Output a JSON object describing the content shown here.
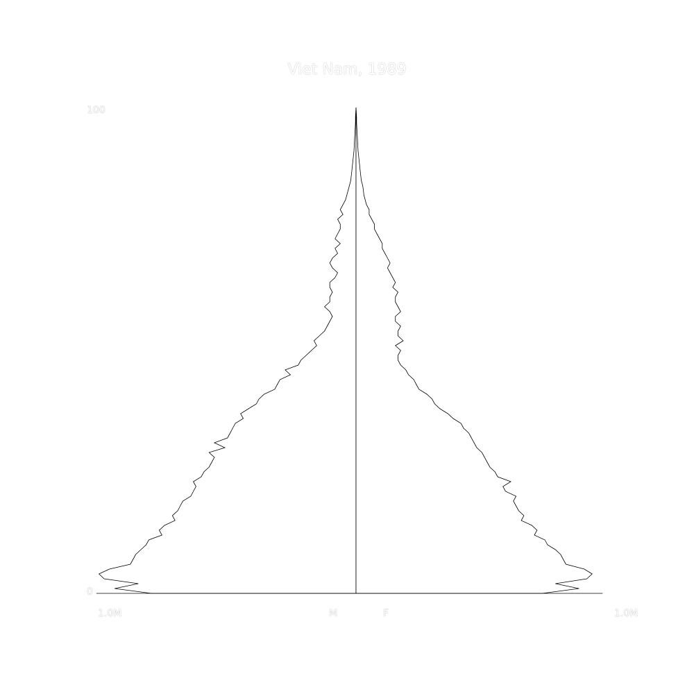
{
  "chart_data": {
    "type": "area",
    "title": "Viet Nam, 1989",
    "y_tick_labels": [
      "100",
      "0"
    ],
    "ylim": [
      0,
      100
    ],
    "x_tick_labels": {
      "left": "1.0M",
      "right": "1.0M"
    },
    "xlim_millions": 1.0,
    "side_labels": {
      "male": "M",
      "female": "F"
    },
    "line_color": "#000000",
    "fill_color": "#ffffff",
    "series": [
      {
        "name": "M",
        "ages": [
          0,
          1,
          2,
          3,
          4,
          5,
          6,
          7,
          8,
          9,
          10,
          11,
          12,
          13,
          14,
          15,
          16,
          17,
          18,
          19,
          20,
          21,
          22,
          23,
          24,
          25,
          26,
          27,
          28,
          29,
          30,
          31,
          32,
          33,
          34,
          35,
          36,
          37,
          38,
          39,
          40,
          41,
          42,
          43,
          44,
          45,
          46,
          47,
          48,
          49,
          50,
          51,
          52,
          53,
          54,
          55,
          56,
          57,
          58,
          59,
          60,
          61,
          62,
          63,
          64,
          65,
          66,
          67,
          68,
          69,
          70,
          71,
          72,
          73,
          74,
          75,
          76,
          77,
          78,
          79,
          80,
          81,
          82,
          83,
          84,
          85,
          86,
          87,
          88,
          89,
          90,
          91,
          92,
          93,
          94,
          95,
          96,
          97,
          98,
          99,
          100
        ],
        "values": [
          0.78,
          0.92,
          0.83,
          0.96,
          0.98,
          0.94,
          0.86,
          0.85,
          0.84,
          0.82,
          0.8,
          0.79,
          0.74,
          0.75,
          0.73,
          0.69,
          0.7,
          0.68,
          0.67,
          0.66,
          0.63,
          0.62,
          0.61,
          0.62,
          0.59,
          0.58,
          0.56,
          0.55,
          0.54,
          0.56,
          0.5,
          0.54,
          0.49,
          0.48,
          0.47,
          0.46,
          0.43,
          0.44,
          0.41,
          0.38,
          0.37,
          0.35,
          0.31,
          0.3,
          0.29,
          0.25,
          0.27,
          0.22,
          0.21,
          0.19,
          0.17,
          0.15,
          0.16,
          0.14,
          0.12,
          0.11,
          0.1,
          0.09,
          0.1,
          0.12,
          0.1,
          0.1,
          0.09,
          0.1,
          0.1,
          0.08,
          0.07,
          0.09,
          0.1,
          0.09,
          0.07,
          0.08,
          0.06,
          0.08,
          0.07,
          0.06,
          0.06,
          0.07,
          0.05,
          0.06,
          0.05,
          0.04,
          0.035,
          0.03,
          0.025,
          0.02,
          0.018,
          0.016,
          0.014,
          0.012,
          0.01,
          0.008,
          0.007,
          0.006,
          0.005,
          0.004,
          0.003,
          0.002,
          0.002,
          0.001,
          0.0
        ]
      },
      {
        "name": "F",
        "ages": [
          0,
          1,
          2,
          3,
          4,
          5,
          6,
          7,
          8,
          9,
          10,
          11,
          12,
          13,
          14,
          15,
          16,
          17,
          18,
          19,
          20,
          21,
          22,
          23,
          24,
          25,
          26,
          27,
          28,
          29,
          30,
          31,
          32,
          33,
          34,
          35,
          36,
          37,
          38,
          39,
          40,
          41,
          42,
          43,
          44,
          45,
          46,
          47,
          48,
          49,
          50,
          51,
          52,
          53,
          54,
          55,
          56,
          57,
          58,
          59,
          60,
          61,
          62,
          63,
          64,
          65,
          66,
          67,
          68,
          69,
          70,
          71,
          72,
          73,
          74,
          75,
          76,
          77,
          78,
          79,
          80,
          81,
          82,
          83,
          84,
          85,
          86,
          87,
          88,
          89,
          90,
          91,
          92,
          93,
          94,
          95,
          96,
          97,
          98,
          99,
          100
        ],
        "values": [
          0.71,
          0.85,
          0.76,
          0.88,
          0.9,
          0.87,
          0.8,
          0.79,
          0.78,
          0.76,
          0.73,
          0.72,
          0.68,
          0.69,
          0.67,
          0.63,
          0.64,
          0.62,
          0.61,
          0.6,
          0.61,
          0.57,
          0.56,
          0.59,
          0.54,
          0.53,
          0.51,
          0.5,
          0.49,
          0.48,
          0.46,
          0.45,
          0.44,
          0.43,
          0.41,
          0.4,
          0.37,
          0.35,
          0.32,
          0.3,
          0.29,
          0.27,
          0.24,
          0.23,
          0.22,
          0.2,
          0.19,
          0.17,
          0.16,
          0.16,
          0.17,
          0.15,
          0.18,
          0.16,
          0.16,
          0.17,
          0.15,
          0.15,
          0.17,
          0.16,
          0.15,
          0.15,
          0.16,
          0.14,
          0.15,
          0.14,
          0.13,
          0.12,
          0.13,
          0.12,
          0.11,
          0.1,
          0.1,
          0.09,
          0.08,
          0.07,
          0.07,
          0.06,
          0.05,
          0.05,
          0.04,
          0.035,
          0.03,
          0.028,
          0.025,
          0.02,
          0.018,
          0.016,
          0.014,
          0.012,
          0.01,
          0.008,
          0.007,
          0.006,
          0.005,
          0.004,
          0.003,
          0.002,
          0.002,
          0.001,
          0.0
        ]
      }
    ]
  }
}
